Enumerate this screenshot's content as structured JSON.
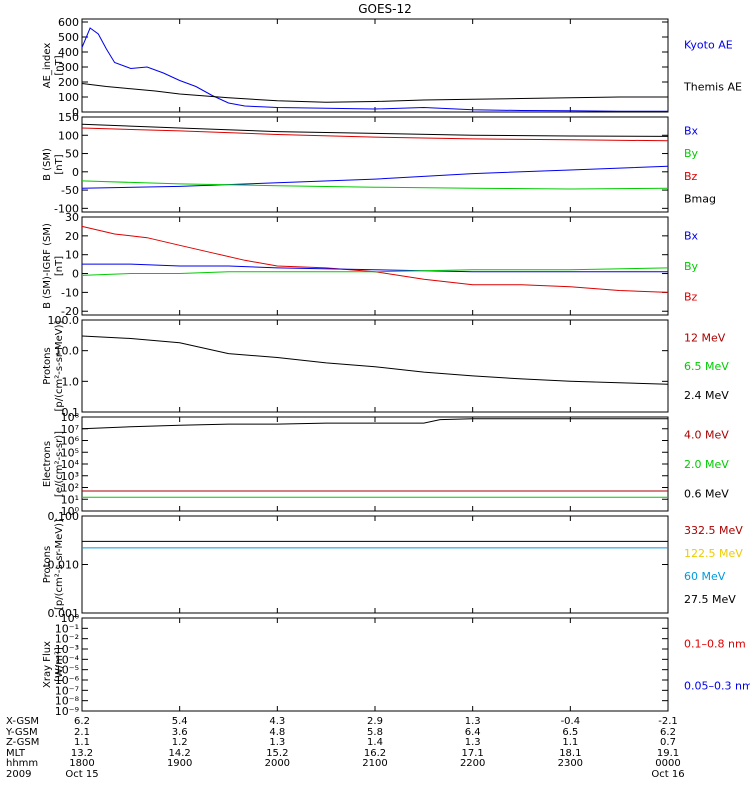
{
  "title": "GOES-12",
  "colors": {
    "black": "#000000",
    "blue": "#0000ee",
    "red": "#dd0000",
    "green": "#00cc00",
    "darkred": "#aa0000",
    "cyan": "#0099dd",
    "yellow": "#eecc00"
  },
  "chart_data": [
    {
      "id": "ae",
      "type": "line",
      "ylabel": [
        "AE_index",
        "[nT]"
      ],
      "ylim": [
        0,
        620
      ],
      "yticks": [
        "0",
        "100",
        "200",
        "300",
        "400",
        "500",
        "600"
      ],
      "ytick_values": [
        0,
        100,
        200,
        300,
        400,
        500,
        600
      ],
      "legend": [
        {
          "text": "Kyoto AE",
          "color": "#0000ee"
        },
        {
          "text": "Themis AE",
          "color": "#000000"
        }
      ],
      "series": [
        {
          "name": "Kyoto AE",
          "color": "#0000ee",
          "x": [
            1800,
            1805,
            1810,
            1815,
            1820,
            1830,
            1840,
            1850,
            1900,
            1910,
            1920,
            1930,
            1940,
            1950,
            2000,
            2030,
            2100,
            2130,
            2200,
            2230,
            2300,
            2330,
            2400
          ],
          "y": [
            430,
            560,
            520,
            420,
            330,
            290,
            300,
            260,
            210,
            170,
            110,
            60,
            40,
            35,
            30,
            25,
            20,
            30,
            15,
            10,
            8,
            5,
            5
          ]
        },
        {
          "name": "Themis AE",
          "color": "#000000",
          "x": [
            1800,
            1815,
            1830,
            1845,
            1900,
            1930,
            2000,
            2030,
            2100,
            2130,
            2200,
            2230,
            2300,
            2330,
            2400
          ],
          "y": [
            190,
            170,
            155,
            140,
            120,
            95,
            75,
            65,
            70,
            80,
            85,
            90,
            95,
            100,
            100
          ]
        }
      ]
    },
    {
      "id": "bsm",
      "type": "line",
      "ylabel": [
        "B (SM)",
        "[nT]"
      ],
      "ylim": [
        -110,
        150
      ],
      "yticks": [
        "-100",
        "-50",
        "0",
        "50",
        "100",
        "150"
      ],
      "ytick_values": [
        -100,
        -50,
        0,
        50,
        100,
        150
      ],
      "legend": [
        {
          "text": "Bx",
          "color": "#0000ee"
        },
        {
          "text": "By",
          "color": "#00cc00"
        },
        {
          "text": "Bz",
          "color": "#dd0000"
        },
        {
          "text": "Bmag",
          "color": "#000000"
        }
      ],
      "series": [
        {
          "name": "Bmag",
          "color": "#000000",
          "x": [
            1800,
            1900,
            2000,
            2100,
            2200,
            2300,
            2400
          ],
          "y": [
            130,
            120,
            110,
            105,
            100,
            98,
            97
          ]
        },
        {
          "name": "Bz",
          "color": "#dd0000",
          "x": [
            1800,
            1900,
            2000,
            2100,
            2200,
            2300,
            2400
          ],
          "y": [
            120,
            112,
            102,
            95,
            90,
            88,
            85
          ]
        },
        {
          "name": "Bx",
          "color": "#0000ee",
          "x": [
            1800,
            1900,
            2000,
            2100,
            2200,
            2300,
            2400
          ],
          "y": [
            -45,
            -40,
            -30,
            -20,
            -5,
            5,
            15
          ]
        },
        {
          "name": "By",
          "color": "#00cc00",
          "x": [
            1800,
            1900,
            2000,
            2100,
            2200,
            2300,
            2400
          ],
          "y": [
            -25,
            -33,
            -38,
            -42,
            -45,
            -47,
            -45
          ]
        }
      ]
    },
    {
      "id": "bigrf",
      "type": "line",
      "ylabel": [
        "B (SM)-IGRF (SM)",
        "[nT]"
      ],
      "ylim": [
        -22,
        30
      ],
      "yticks": [
        "-20",
        "-10",
        "0",
        "10",
        "20",
        "30"
      ],
      "ytick_values": [
        -20,
        -10,
        0,
        10,
        20,
        30
      ],
      "legend": [
        {
          "text": "Bx",
          "color": "#0000ee"
        },
        {
          "text": "By",
          "color": "#00cc00"
        },
        {
          "text": "Bz",
          "color": "#dd0000"
        }
      ],
      "series": [
        {
          "name": "Bz",
          "color": "#dd0000",
          "x": [
            1800,
            1820,
            1840,
            1900,
            1920,
            1940,
            2000,
            2030,
            2100,
            2130,
            2200,
            2230,
            2300,
            2330,
            2400
          ],
          "y": [
            25,
            21,
            19,
            15,
            11,
            7,
            4,
            3,
            1,
            -3,
            -6,
            -6,
            -7,
            -9,
            -10
          ]
        },
        {
          "name": "Bx",
          "color": "#0000ee",
          "x": [
            1800,
            1830,
            1900,
            1930,
            2000,
            2100,
            2200,
            2300,
            2400
          ],
          "y": [
            5,
            5,
            4,
            4,
            3,
            2,
            1,
            1,
            1
          ]
        },
        {
          "name": "By",
          "color": "#00cc00",
          "x": [
            1800,
            1830,
            1900,
            1930,
            2000,
            2100,
            2200,
            2300,
            2400
          ],
          "y": [
            -1,
            0,
            0,
            1,
            1,
            1,
            2,
            2,
            3
          ]
        }
      ]
    },
    {
      "id": "protons1",
      "type": "line",
      "log": true,
      "ylabel": [
        "Protons",
        "[p/(cm²-s-sr-MeV)]"
      ],
      "ylim": [
        0.1,
        100
      ],
      "yticks": [
        "0.1",
        "1.0",
        "10.0",
        "100.0"
      ],
      "ytick_values": [
        0.1,
        1,
        10,
        100
      ],
      "legend": [
        {
          "text": "12 MeV",
          "color": "#aa0000"
        },
        {
          "text": "6.5 MeV",
          "color": "#00cc00"
        },
        {
          "text": "2.4 MeV",
          "color": "#000000"
        }
      ],
      "series": [
        {
          "name": "2.4 MeV",
          "color": "#000000",
          "x": [
            1800,
            1830,
            1900,
            1930,
            2000,
            2030,
            2100,
            2130,
            2200,
            2230,
            2300,
            2330,
            2400
          ],
          "y": [
            30,
            25,
            18,
            8,
            6,
            4,
            3,
            2,
            1.5,
            1.2,
            1,
            0.9,
            0.8
          ]
        }
      ]
    },
    {
      "id": "electrons",
      "type": "line",
      "log": true,
      "ylabel": [
        "Electrons",
        "[e/(cm²-s-sr)]"
      ],
      "ylim": [
        1,
        100000000
      ],
      "yticks": [
        "10⁰",
        "10¹",
        "10²",
        "10³",
        "10⁴",
        "10⁵",
        "10⁶",
        "10⁷",
        "10⁸"
      ],
      "ytick_values": [
        1,
        10,
        100,
        1000,
        10000,
        100000,
        1000000,
        10000000,
        100000000
      ],
      "legend": [
        {
          "text": "4.0 MeV",
          "color": "#aa0000"
        },
        {
          "text": "2.0 MeV",
          "color": "#00cc00"
        },
        {
          "text": "0.6 MeV",
          "color": "#000000"
        }
      ],
      "series": [
        {
          "name": "0.6 MeV",
          "color": "#000000",
          "x": [
            1800,
            1830,
            1900,
            1930,
            2000,
            2030,
            2100,
            2130,
            2140,
            2200,
            2300,
            2400
          ],
          "y": [
            10000000,
            15000000,
            20000000,
            25000000,
            25000000,
            30000000,
            30000000,
            30000000,
            60000000,
            70000000,
            70000000,
            70000000
          ]
        },
        {
          "name": "4.0 MeV",
          "color": "#aa0000",
          "x": [
            1800,
            2400
          ],
          "y": [
            50,
            50
          ]
        },
        {
          "name": "2.0 MeV",
          "color": "#00cc00",
          "x": [
            1800,
            2400
          ],
          "y": [
            15,
            15
          ]
        }
      ]
    },
    {
      "id": "protons2",
      "type": "line",
      "log": true,
      "ylabel": [
        "Protons",
        "[p/(cm²-s-sr-MeV)]"
      ],
      "ylim": [
        0.001,
        0.1
      ],
      "yticks": [
        "0.001",
        "0.010",
        "0.100"
      ],
      "ytick_values": [
        0.001,
        0.01,
        0.1
      ],
      "legend": [
        {
          "text": "332.5 MeV",
          "color": "#aa0000"
        },
        {
          "text": "122.5 MeV",
          "color": "#eecc00"
        },
        {
          "text": "60 MeV",
          "color": "#0099dd"
        },
        {
          "text": "27.5 MeV",
          "color": "#000000"
        }
      ],
      "series": [
        {
          "name": "27.5 MeV",
          "color": "#000000",
          "x": [
            1800,
            2400
          ],
          "y": [
            0.03,
            0.03
          ]
        },
        {
          "name": "60 MeV",
          "color": "#0099dd",
          "x": [
            1800,
            2400
          ],
          "y": [
            0.022,
            0.022
          ]
        }
      ]
    },
    {
      "id": "xray",
      "type": "line",
      "log": true,
      "ylabel": [
        "Xray Flux",
        "[W/m²]"
      ],
      "ylim": [
        1e-09,
        1
      ],
      "yticks": [
        "10⁻⁹",
        "10⁻⁸",
        "10⁻⁷",
        "10⁻⁶",
        "10⁻⁵",
        "10⁻⁴",
        "10⁻³",
        "10⁻²",
        "10⁻¹",
        "10⁰"
      ],
      "ytick_values": [
        1e-09,
        1e-08,
        1e-07,
        1e-06,
        1e-05,
        0.0001,
        0.001,
        0.01,
        0.1,
        1
      ],
      "legend": [
        {
          "text": "0.1–0.8 nm",
          "color": "#dd0000"
        },
        {
          "text": "0.05–0.3 nm",
          "color": "#0000ee"
        }
      ],
      "series": []
    }
  ],
  "ephemeris": {
    "labels": [
      "X-GSM",
      "Y-GSM",
      "Z-GSM",
      "MLT",
      "hhmm",
      "2009"
    ],
    "columns": [
      [
        "6.2",
        "2.1",
        "1.1",
        "13.2",
        "1800",
        "Oct 15"
      ],
      [
        "5.4",
        "3.6",
        "1.2",
        "14.2",
        "1900",
        ""
      ],
      [
        "4.3",
        "4.8",
        "1.3",
        "15.2",
        "2000",
        ""
      ],
      [
        "2.9",
        "5.8",
        "1.4",
        "16.2",
        "2100",
        ""
      ],
      [
        "1.3",
        "6.4",
        "1.3",
        "17.1",
        "2200",
        ""
      ],
      [
        "-0.4",
        "6.5",
        "1.1",
        "18.1",
        "2300",
        ""
      ],
      [
        "-2.1",
        "6.2",
        "0.7",
        "19.1",
        "0000",
        "Oct 16"
      ]
    ]
  }
}
